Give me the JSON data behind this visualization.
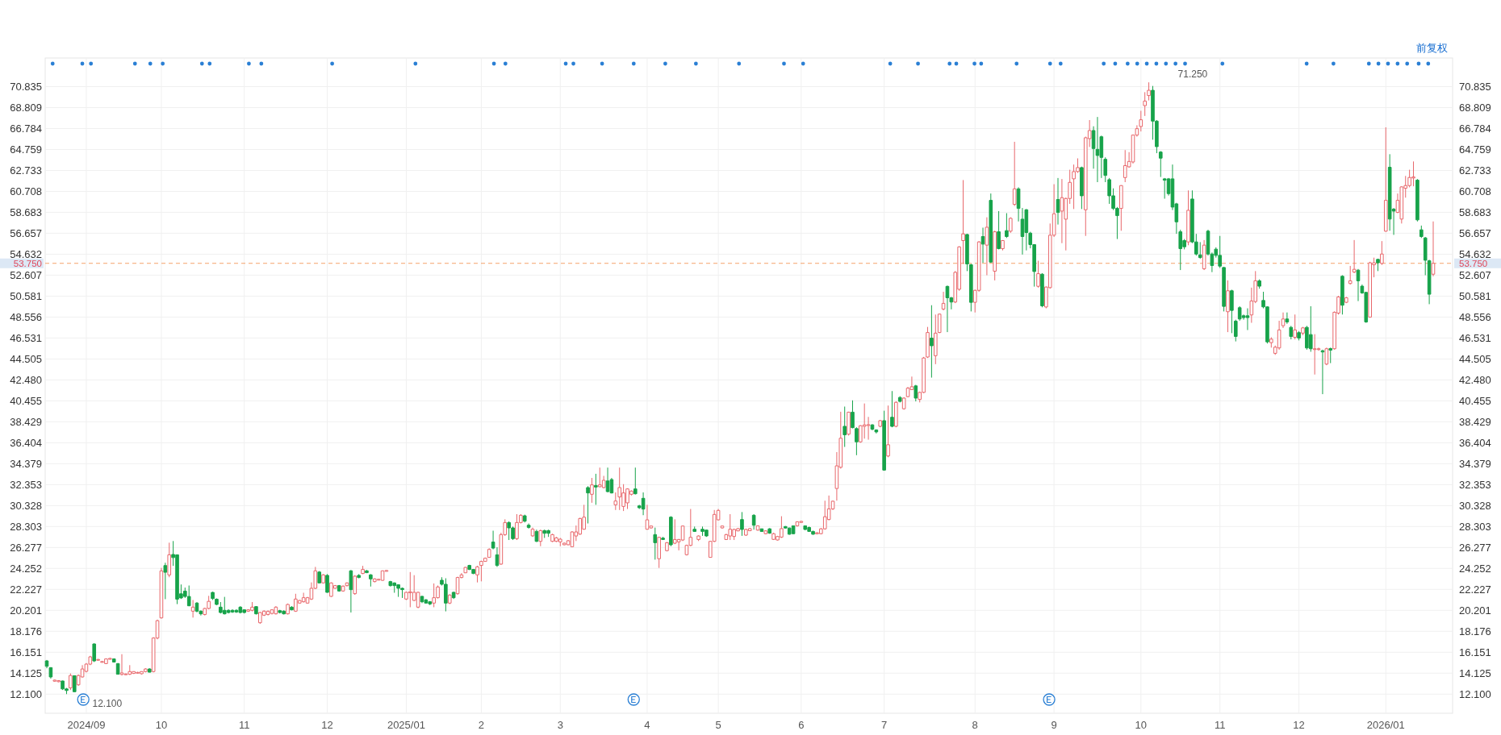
{
  "chart_data": {
    "type": "candlestick",
    "categories": [
      null,
      null,
      null,
      null,
      null,
      null,
      null,
      null,
      null,
      null,
      "2024/09",
      null,
      null,
      null,
      null,
      null,
      null,
      null,
      null,
      null,
      null,
      null,
      null,
      null,
      null,
      null,
      null,
      null,
      null,
      "10",
      null,
      null,
      null,
      null,
      null,
      null,
      null,
      null,
      null,
      null,
      null,
      null,
      null,
      null,
      null,
      null,
      null,
      null,
      null,
      null,
      "11",
      null,
      null,
      null,
      null,
      null,
      null,
      null,
      null,
      null,
      null,
      null,
      null,
      null,
      null,
      null,
      null,
      null,
      null,
      null,
      null,
      "12",
      null,
      null,
      null,
      null,
      null,
      null,
      null,
      null,
      null,
      null,
      null,
      null,
      null,
      null,
      null,
      null,
      null,
      null,
      null,
      "2025/01",
      null,
      null,
      null,
      null,
      null,
      null,
      null,
      null,
      null,
      null,
      null,
      null,
      null,
      null,
      null,
      null,
      null,
      null,
      "2",
      null,
      null,
      null,
      null,
      null,
      null,
      null,
      null,
      null,
      null,
      null,
      null,
      null,
      null,
      null,
      null,
      null,
      null,
      null,
      "3",
      null,
      null,
      null,
      null,
      null,
      null,
      null,
      null,
      null,
      null,
      null,
      null,
      null,
      null,
      null,
      null,
      null,
      null,
      null,
      null,
      null,
      "4",
      null,
      null,
      null,
      null,
      null,
      null,
      null,
      null,
      null,
      null,
      null,
      null,
      null,
      null,
      null,
      null,
      null,
      "5",
      null,
      null,
      null,
      null,
      null,
      null,
      null,
      null,
      null,
      null,
      null,
      null,
      null,
      null,
      null,
      null,
      null,
      null,
      null,
      null,
      "6",
      null,
      null,
      null,
      null,
      null,
      null,
      null,
      null,
      null,
      null,
      null,
      null,
      null,
      null,
      null,
      null,
      null,
      null,
      null,
      null,
      "7",
      null,
      null,
      null,
      null,
      null,
      null,
      null,
      null,
      null,
      null,
      null,
      null,
      null,
      null,
      null,
      null,
      null,
      null,
      null,
      null,
      null,
      null,
      "8",
      null,
      null,
      null,
      null,
      null,
      null,
      null,
      null,
      null,
      null,
      null,
      null,
      null,
      null,
      null,
      null,
      null,
      null,
      null,
      "9",
      null,
      null,
      null,
      null,
      null,
      null,
      null,
      null,
      null,
      null,
      null,
      null,
      null,
      null,
      null,
      null,
      null,
      null,
      null,
      null,
      null,
      "10",
      null,
      null,
      null,
      null,
      null,
      null,
      null,
      null,
      null,
      null,
      null,
      null,
      null,
      null,
      null,
      null,
      null,
      null,
      null,
      "11",
      null,
      null,
      null,
      null,
      null,
      null,
      null,
      null,
      null,
      null,
      null,
      null,
      null,
      null,
      null,
      null,
      null,
      null,
      null,
      "12",
      null,
      null,
      null,
      null,
      null,
      null,
      null,
      null,
      null,
      null,
      null,
      null,
      null,
      null,
      null,
      null,
      null,
      null,
      null,
      null,
      null,
      "2026/01",
      null,
      null,
      null,
      null,
      null,
      null,
      null,
      null,
      null,
      null,
      null,
      null
    ],
    "ohlc": [
      [
        15.31,
        15.4,
        14.6,
        14.79
      ],
      [
        14.66,
        14.7,
        13.6,
        13.76
      ],
      [
        13.35,
        13.5,
        13.3,
        13.45
      ],
      [
        13.3,
        13.45,
        13.25,
        13.4
      ],
      [
        13.37,
        13.4,
        12.5,
        12.6
      ],
      [
        12.6,
        12.7,
        12.1,
        12.45
      ],
      [
        12.7,
        14.1,
        12.5,
        13.9
      ],
      [
        13.88,
        13.9,
        12.3,
        12.33
      ],
      [
        13.0,
        14.0,
        12.9,
        13.9
      ],
      [
        13.76,
        14.9,
        13.7,
        14.53
      ],
      [
        14.3,
        15.1,
        14.2,
        15.0
      ],
      [
        15.0,
        15.8,
        14.9,
        15.7
      ],
      [
        16.95,
        17.0,
        15.2,
        15.31
      ],
      [
        15.4,
        15.5,
        15.35,
        15.45
      ],
      [
        15.2,
        15.3,
        15.15,
        15.25
      ],
      [
        15.05,
        15.55,
        15.0,
        15.5
      ],
      [
        15.5,
        15.6,
        15.45,
        15.55
      ],
      [
        15.5,
        15.55,
        15.15,
        15.2
      ],
      [
        15.05,
        15.1,
        14.0,
        14.02
      ],
      [
        14.0,
        15.96,
        13.9,
        14.15
      ],
      [
        14.0,
        14.1,
        13.95,
        14.05
      ],
      [
        14.02,
        14.9,
        13.95,
        14.28
      ],
      [
        14.1,
        14.3,
        14.05,
        14.28
      ],
      [
        14.15,
        14.25,
        14.1,
        14.2
      ],
      [
        14.07,
        14.3,
        14.0,
        14.28
      ],
      [
        14.28,
        14.6,
        14.2,
        14.53
      ],
      [
        14.53,
        14.6,
        14.2,
        14.22
      ],
      [
        14.28,
        17.6,
        14.2,
        17.52
      ],
      [
        17.52,
        19.3,
        17.4,
        19.2
      ],
      [
        19.47,
        24.3,
        19.4,
        24.01
      ],
      [
        24.53,
        24.8,
        21.28,
        23.88
      ],
      [
        23.62,
        26.74,
        23.4,
        25.57
      ],
      [
        25.6,
        26.9,
        24.5,
        25.3
      ],
      [
        25.57,
        25.6,
        20.8,
        21.28
      ],
      [
        21.8,
        22.7,
        21.3,
        21.4
      ],
      [
        22.06,
        22.4,
        21.4,
        21.54
      ],
      [
        21.54,
        22.6,
        20.6,
        20.64
      ],
      [
        20.12,
        21.2,
        19.5,
        20.51
      ],
      [
        20.9,
        21.0,
        20.0,
        20.12
      ],
      [
        20.12,
        20.2,
        19.7,
        19.86
      ],
      [
        19.8,
        20.45,
        19.7,
        20.38
      ],
      [
        20.38,
        21.6,
        20.3,
        21.07
      ],
      [
        21.93,
        22.0,
        21.2,
        21.34
      ],
      [
        21.28,
        21.35,
        20.7,
        20.77
      ],
      [
        20.51,
        21.0,
        19.9,
        19.99
      ],
      [
        20.2,
        21.5,
        19.8,
        19.86
      ],
      [
        20.2,
        20.3,
        19.9,
        19.99
      ],
      [
        20.2,
        20.3,
        19.95,
        20.04
      ],
      [
        20.2,
        20.3,
        19.95,
        20.04
      ],
      [
        20.51,
        20.6,
        19.9,
        19.99
      ],
      [
        20.25,
        20.3,
        19.9,
        19.99
      ],
      [
        20.12,
        20.3,
        20.05,
        20.25
      ],
      [
        20.2,
        21.0,
        20.1,
        20.51
      ],
      [
        20.56,
        20.6,
        19.8,
        19.86
      ],
      [
        19.0,
        20.05,
        18.9,
        19.99
      ],
      [
        19.73,
        20.2,
        19.65,
        20.12
      ],
      [
        19.8,
        20.2,
        19.7,
        20.1
      ],
      [
        19.9,
        20.3,
        19.8,
        20.25
      ],
      [
        19.86,
        20.6,
        19.8,
        20.51
      ],
      [
        20.17,
        20.25,
        19.9,
        19.99
      ],
      [
        20.12,
        20.2,
        19.8,
        19.86
      ],
      [
        19.86,
        20.85,
        19.8,
        20.77
      ],
      [
        20.51,
        20.6,
        20.2,
        20.25
      ],
      [
        20.12,
        21.8,
        20.05,
        21.29
      ],
      [
        20.9,
        21.2,
        20.85,
        21.15
      ],
      [
        21.03,
        21.9,
        20.95,
        21.42
      ],
      [
        20.9,
        21.5,
        20.85,
        21.42
      ],
      [
        21.29,
        22.9,
        21.2,
        22.33
      ],
      [
        22.33,
        24.4,
        22.25,
        24.02
      ],
      [
        23.9,
        24.0,
        22.8,
        22.85
      ],
      [
        22.85,
        23.7,
        22.8,
        23.63
      ],
      [
        23.58,
        23.7,
        21.9,
        21.94
      ],
      [
        21.55,
        22.9,
        21.5,
        22.85
      ],
      [
        22.33,
        22.65,
        22.3,
        22.59
      ],
      [
        22.59,
        22.65,
        22.0,
        22.07
      ],
      [
        22.07,
        22.6,
        22.0,
        22.54
      ],
      [
        22.59,
        22.9,
        22.5,
        22.85
      ],
      [
        24.02,
        24.1,
        19.99,
        22.2
      ],
      [
        21.81,
        23.6,
        21.7,
        23.5
      ],
      [
        23.58,
        23.7,
        23.3,
        23.37
      ],
      [
        23.76,
        24.5,
        23.7,
        24.15
      ],
      [
        24.02,
        24.1,
        23.8,
        23.84
      ],
      [
        23.63,
        23.7,
        22.5,
        23.24
      ],
      [
        22.98,
        23.3,
        22.9,
        23.24
      ],
      [
        23.17,
        23.25,
        23.1,
        23.2
      ],
      [
        23.1,
        24.05,
        23.05,
        24.02
      ],
      [
        24.0,
        24.1,
        23.95,
        24.05
      ],
      [
        22.98,
        23.05,
        22.5,
        22.59
      ],
      [
        22.85,
        22.9,
        21.9,
        22.59
      ],
      [
        22.67,
        22.7,
        21.5,
        22.33
      ],
      [
        22.33,
        22.4,
        21.4,
        22.2
      ],
      [
        21.29,
        22.0,
        21.2,
        21.94
      ],
      [
        21.9,
        23.9,
        20.5,
        22.0
      ],
      [
        21.16,
        23.6,
        21.1,
        21.94
      ],
      [
        20.51,
        22.0,
        20.4,
        21.94
      ],
      [
        21.55,
        21.6,
        20.9,
        21.03
      ],
      [
        21.21,
        21.3,
        20.85,
        20.9
      ],
      [
        21.03,
        21.1,
        20.7,
        20.82
      ],
      [
        20.9,
        22.8,
        20.5,
        21.42
      ],
      [
        21.42,
        22.6,
        21.35,
        22.46
      ],
      [
        23.11,
        23.4,
        22.6,
        22.72
      ],
      [
        22.72,
        23.3,
        20.1,
        20.9
      ],
      [
        20.9,
        21.75,
        20.8,
        21.68
      ],
      [
        21.94,
        22.0,
        21.3,
        21.42
      ],
      [
        21.81,
        23.45,
        21.7,
        23.37
      ],
      [
        23.37,
        23.8,
        23.3,
        23.63
      ],
      [
        23.83,
        24.4,
        23.8,
        24.35
      ],
      [
        24.54,
        24.6,
        24.1,
        24.15
      ],
      [
        24.15,
        24.2,
        23.7,
        23.76
      ],
      [
        23.63,
        24.5,
        22.9,
        24.41
      ],
      [
        24.54,
        25.0,
        23.0,
        24.93
      ],
      [
        24.93,
        25.3,
        24.9,
        25.24
      ],
      [
        25.32,
        26.2,
        25.3,
        26.09
      ],
      [
        26.8,
        27.9,
        26.1,
        26.22
      ],
      [
        25.57,
        26.3,
        24.4,
        24.54
      ],
      [
        24.67,
        27.7,
        24.6,
        27.52
      ],
      [
        27.52,
        29.0,
        27.4,
        28.69
      ],
      [
        28.69,
        28.8,
        27.0,
        28.17
      ],
      [
        28.17,
        28.3,
        27.0,
        27.13
      ],
      [
        27.13,
        29.5,
        27.0,
        28.69
      ],
      [
        28.69,
        29.5,
        28.6,
        29.39
      ],
      [
        29.34,
        29.45,
        28.7,
        28.82
      ],
      [
        28.43,
        28.6,
        28.1,
        28.22
      ],
      [
        27.4,
        28.2,
        27.3,
        28.04
      ],
      [
        27.83,
        28.0,
        26.8,
        26.87
      ],
      [
        26.87,
        28.0,
        26.4,
        27.91
      ],
      [
        27.91,
        28.0,
        27.2,
        27.65
      ],
      [
        27.91,
        28.0,
        27.3,
        27.65
      ],
      [
        26.87,
        27.6,
        26.8,
        27.52
      ],
      [
        26.87,
        27.3,
        26.8,
        27.21
      ],
      [
        26.82,
        27.2,
        26.4,
        27.08
      ],
      [
        26.54,
        26.75,
        26.5,
        26.69
      ],
      [
        26.54,
        27.0,
        26.5,
        26.93
      ],
      [
        26.35,
        27.85,
        26.3,
        27.78
      ],
      [
        27.39,
        28.4,
        26.9,
        27.78
      ],
      [
        27.57,
        29.15,
        27.5,
        29.08
      ],
      [
        28.04,
        30.4,
        28.0,
        29.21
      ],
      [
        32.07,
        32.2,
        28.6,
        31.55
      ],
      [
        31.42,
        33.0,
        30.6,
        32.33
      ],
      [
        32.27,
        33.4,
        30.4,
        32.12
      ],
      [
        32.15,
        34.0,
        32.1,
        32.33
      ],
      [
        32.07,
        33.2,
        32.0,
        32.77
      ],
      [
        32.71,
        34.0,
        31.6,
        31.68
      ],
      [
        32.84,
        33.0,
        31.5,
        31.55
      ],
      [
        30.4,
        31.6,
        29.9,
        30.77
      ],
      [
        31.16,
        34.0,
        29.9,
        32.07
      ],
      [
        30.25,
        32.4,
        29.8,
        31.55
      ],
      [
        30.59,
        32.0,
        30.0,
        31.94
      ],
      [
        31.42,
        31.8,
        31.3,
        31.73
      ],
      [
        31.94,
        34.0,
        31.4,
        31.47
      ],
      [
        30.3,
        30.4,
        30.0,
        30.12
      ],
      [
        31.03,
        31.6,
        29.4,
        29.99
      ],
      [
        28.04,
        30.4,
        28.0,
        28.95
      ],
      [
        28.17,
        28.4,
        28.1,
        28.35
      ],
      [
        27.52,
        28.2,
        25.1,
        26.74
      ],
      [
        25.19,
        27.3,
        24.3,
        27.26
      ],
      [
        27.18,
        27.3,
        27.0,
        27.05
      ],
      [
        25.97,
        26.8,
        25.9,
        26.74
      ],
      [
        29.21,
        29.3,
        26.4,
        26.54
      ],
      [
        26.69,
        29.0,
        26.6,
        27.05
      ],
      [
        26.82,
        27.1,
        26.0,
        27.05
      ],
      [
        27.0,
        28.4,
        26.9,
        28.35
      ],
      [
        25.58,
        26.55,
        25.5,
        26.48
      ],
      [
        26.48,
        30.0,
        26.4,
        27.26
      ],
      [
        28.04,
        28.3,
        27.8,
        27.83
      ],
      [
        27.05,
        27.45,
        26.9,
        27.39
      ],
      [
        28.04,
        28.3,
        27.4,
        27.83
      ],
      [
        27.96,
        28.0,
        27.3,
        27.39
      ],
      [
        25.32,
        26.9,
        25.3,
        26.87
      ],
      [
        26.87,
        29.9,
        26.8,
        29.47
      ],
      [
        28.95,
        30.0,
        28.9,
        29.86
      ],
      [
        28.17,
        28.4,
        28.1,
        28.35
      ],
      [
        27.05,
        27.6,
        27.0,
        27.52
      ],
      [
        27.39,
        29.5,
        27.0,
        28.04
      ],
      [
        27.34,
        28.1,
        27.0,
        28.02
      ],
      [
        27.88,
        28.15,
        27.85,
        28.1
      ],
      [
        28.98,
        29.7,
        27.4,
        28.02
      ],
      [
        27.47,
        28.1,
        27.4,
        28.02
      ],
      [
        27.9,
        28.15,
        27.85,
        28.1
      ],
      [
        29.39,
        29.5,
        28.0,
        28.43
      ],
      [
        27.96,
        28.4,
        27.9,
        28.37
      ],
      [
        28.08,
        28.1,
        27.8,
        27.83
      ],
      [
        27.61,
        27.95,
        27.55,
        27.88
      ],
      [
        28.08,
        28.15,
        27.6,
        27.66
      ],
      [
        27.06,
        27.7,
        27.0,
        27.61
      ],
      [
        27.0,
        27.4,
        26.95,
        27.34
      ],
      [
        27.28,
        29.3,
        27.2,
        28.1
      ],
      [
        28.3,
        28.35,
        28.1,
        28.16
      ],
      [
        28.16,
        28.2,
        27.5,
        27.56
      ],
      [
        28.37,
        28.4,
        27.55,
        27.61
      ],
      [
        28.37,
        28.8,
        28.3,
        28.76
      ],
      [
        28.7,
        28.85,
        28.65,
        28.8
      ],
      [
        28.37,
        28.4,
        27.95,
        28.02
      ],
      [
        28.21,
        28.3,
        27.8,
        27.83
      ],
      [
        27.83,
        27.9,
        27.5,
        27.56
      ],
      [
        27.6,
        27.75,
        27.55,
        27.7
      ],
      [
        27.61,
        28.15,
        27.55,
        28.08
      ],
      [
        28.08,
        30.8,
        28.0,
        29.25
      ],
      [
        28.98,
        31.3,
        28.9,
        30.01
      ],
      [
        30.01,
        30.8,
        29.9,
        30.75
      ],
      [
        31.98,
        35.5,
        30.8,
        34.17
      ],
      [
        34.03,
        39.4,
        33.9,
        36.84
      ],
      [
        37.99,
        39.9,
        36.0,
        37.17
      ],
      [
        37.23,
        39.4,
        37.1,
        39.36
      ],
      [
        39.36,
        40.5,
        37.8,
        37.86
      ],
      [
        37.77,
        37.9,
        35.2,
        36.49
      ],
      [
        36.49,
        38.1,
        36.4,
        38.05
      ],
      [
        37.99,
        40.2,
        36.8,
        38.13
      ],
      [
        38.1,
        38.9,
        36.7,
        38.15
      ],
      [
        38.13,
        38.2,
        37.6,
        37.72
      ],
      [
        37.64,
        37.7,
        37.3,
        37.45
      ],
      [
        37.99,
        38.6,
        37.9,
        38.54
      ],
      [
        38.54,
        39.5,
        33.7,
        33.76
      ],
      [
        35.12,
        40.0,
        35.0,
        36.21
      ],
      [
        38.87,
        41.4,
        37.9,
        37.99
      ],
      [
        37.99,
        40.4,
        37.9,
        40.31
      ],
      [
        40.78,
        40.9,
        40.3,
        40.4
      ],
      [
        39.69,
        40.8,
        39.6,
        40.72
      ],
      [
        40.86,
        41.8,
        40.8,
        41.68
      ],
      [
        41.54,
        42.8,
        41.5,
        41.82
      ],
      [
        41.9,
        42.0,
        40.4,
        40.72
      ],
      [
        40.59,
        41.35,
        40.3,
        41.27
      ],
      [
        41.27,
        44.7,
        41.2,
        44.6
      ],
      [
        44.69,
        47.6,
        44.6,
        47.06
      ],
      [
        46.52,
        49.7,
        42.7,
        45.78
      ],
      [
        44.82,
        48.8,
        44.0,
        47.0
      ],
      [
        47.06,
        48.9,
        47.0,
        48.84
      ],
      [
        49.33,
        51.0,
        49.2,
        49.88
      ],
      [
        51.52,
        51.6,
        47.1,
        50.42
      ],
      [
        50.42,
        50.5,
        49.3,
        50.01
      ],
      [
        50.01,
        53.0,
        49.9,
        52.88
      ],
      [
        51.24,
        55.4,
        51.1,
        55.34
      ],
      [
        55.95,
        61.8,
        53.7,
        56.6
      ],
      [
        56.54,
        56.6,
        53.0,
        53.69
      ],
      [
        53.61,
        53.7,
        49.1,
        49.98
      ],
      [
        49.98,
        51.2,
        49.0,
        51.14
      ],
      [
        51.14,
        55.9,
        51.0,
        55.82
      ],
      [
        56.34,
        57.2,
        53.8,
        55.61
      ],
      [
        55.51,
        58.2,
        52.6,
        57.24
      ],
      [
        59.84,
        60.5,
        53.8,
        53.87
      ],
      [
        52.99,
        56.9,
        52.1,
        56.8
      ],
      [
        56.8,
        58.8,
        55.1,
        55.17
      ],
      [
        55.17,
        56.0,
        55.0,
        55.95
      ],
      [
        56.91,
        58.6,
        56.2,
        56.34
      ],
      [
        56.86,
        58.2,
        56.7,
        58.1
      ],
      [
        59.45,
        65.5,
        59.3,
        60.95
      ],
      [
        60.95,
        61.1,
        57.8,
        59.06
      ],
      [
        58.02,
        59.1,
        54.6,
        56.34
      ],
      [
        58.93,
        59.0,
        55.0,
        56.73
      ],
      [
        56.67,
        56.8,
        55.2,
        55.56
      ],
      [
        55.56,
        55.6,
        51.5,
        52.96
      ],
      [
        51.53,
        54.0,
        51.4,
        52.75
      ],
      [
        52.7,
        52.8,
        49.5,
        49.64
      ],
      [
        49.53,
        51.5,
        49.4,
        51.46
      ],
      [
        51.4,
        57.6,
        51.3,
        56.47
      ],
      [
        56.47,
        61.4,
        56.3,
        58.54
      ],
      [
        59.92,
        62.0,
        57.5,
        58.67
      ],
      [
        58.8,
        61.9,
        55.7,
        60.1
      ],
      [
        58.02,
        60.1,
        55.0,
        60.02
      ],
      [
        60.02,
        62.8,
        59.5,
        61.58
      ],
      [
        61.92,
        63.3,
        59.0,
        62.62
      ],
      [
        62.62,
        63.9,
        62.5,
        63.01
      ],
      [
        63.01,
        63.1,
        59.0,
        60.28
      ],
      [
        58.93,
        66.0,
        56.4,
        65.89
      ],
      [
        65.81,
        67.6,
        65.0,
        66.59
      ],
      [
        66.59,
        67.0,
        62.9,
        64.85
      ],
      [
        64.77,
        67.9,
        61.6,
        64.18
      ],
      [
        65.99,
        66.1,
        62.0,
        63.99
      ],
      [
        63.81,
        64.0,
        61.6,
        62.25
      ],
      [
        61.84,
        62.0,
        59.5,
        60.28
      ],
      [
        60.28,
        61.0,
        58.9,
        59.06
      ],
      [
        59.06,
        59.2,
        56.1,
        58.36
      ],
      [
        59.06,
        61.3,
        56.9,
        61.27
      ],
      [
        62.04,
        64.7,
        61.6,
        63.2
      ],
      [
        63.08,
        64.5,
        63.0,
        63.6
      ],
      [
        63.55,
        66.2,
        63.4,
        66.15
      ],
      [
        66.15,
        67.1,
        66.0,
        66.77
      ],
      [
        66.98,
        68.5,
        66.5,
        67.63
      ],
      [
        69.0,
        70.3,
        68.0,
        69.44
      ],
      [
        69.97,
        71.25,
        69.5,
        70.48
      ],
      [
        70.48,
        70.9,
        65.7,
        67.5
      ],
      [
        67.5,
        67.6,
        64.4,
        65.03
      ],
      [
        64.51,
        64.6,
        62.1,
        63.92
      ],
      [
        61.92,
        62.0,
        60.0,
        61.79
      ],
      [
        61.92,
        62.0,
        60.3,
        60.49
      ],
      [
        61.92,
        63.3,
        58.9,
        59.19
      ],
      [
        59.5,
        59.6,
        56.6,
        57.76
      ],
      [
        56.8,
        57.0,
        53.1,
        55.17
      ],
      [
        55.95,
        56.1,
        55.1,
        55.35
      ],
      [
        55.82,
        60.8,
        55.5,
        58.88
      ],
      [
        59.97,
        60.8,
        55.7,
        55.82
      ],
      [
        55.82,
        56.6,
        54.5,
        54.65
      ],
      [
        54.57,
        55.8,
        54.2,
        54.31
      ],
      [
        53.22,
        56.0,
        53.1,
        55.51
      ],
      [
        56.86,
        57.0,
        54.5,
        54.65
      ],
      [
        54.65,
        54.8,
        52.9,
        53.54
      ],
      [
        55.12,
        55.3,
        54.3,
        54.52
      ],
      [
        54.52,
        56.4,
        53.3,
        53.48
      ],
      [
        53.35,
        53.4,
        49.1,
        49.59
      ],
      [
        49.07,
        52.1,
        47.1,
        51.1
      ],
      [
        51.1,
        51.2,
        47.0,
        49.2
      ],
      [
        48.16,
        48.3,
        46.2,
        46.68
      ],
      [
        49.46,
        49.6,
        48.2,
        48.37
      ],
      [
        48.68,
        48.8,
        48.3,
        48.5
      ],
      [
        48.68,
        49.4,
        47.3,
        48.5
      ],
      [
        48.76,
        51.4,
        48.0,
        50.11
      ],
      [
        50.06,
        53.0,
        49.9,
        52.06
      ],
      [
        52.06,
        52.2,
        51.3,
        51.54
      ],
      [
        50.16,
        51.0,
        49.4,
        49.54
      ],
      [
        49.54,
        49.6,
        46.0,
        46.16
      ],
      [
        46.08,
        46.6,
        45.6,
        46.42
      ],
      [
        45.05,
        45.8,
        44.9,
        45.64
      ],
      [
        45.57,
        48.2,
        45.4,
        47.31
      ],
      [
        47.72,
        49.0,
        47.5,
        48.37
      ],
      [
        48.37,
        49.0,
        47.9,
        48.08
      ],
      [
        47.56,
        47.7,
        46.4,
        46.68
      ],
      [
        46.6,
        48.8,
        46.4,
        47.31
      ],
      [
        47.05,
        47.2,
        46.3,
        46.53
      ],
      [
        47.0,
        47.6,
        46.8,
        47.51
      ],
      [
        47.56,
        47.7,
        45.4,
        45.57
      ],
      [
        46.86,
        49.6,
        45.2,
        45.49
      ],
      [
        45.44,
        46.9,
        43.0,
        45.49
      ],
      [
        45.45,
        45.6,
        45.3,
        45.49
      ],
      [
        45.3,
        45.4,
        41.1,
        45.18
      ],
      [
        44.01,
        45.6,
        43.9,
        45.49
      ],
      [
        45.51,
        45.6,
        44.1,
        45.36
      ],
      [
        45.49,
        49.1,
        45.4,
        49.02
      ],
      [
        48.94,
        50.6,
        48.8,
        50.5
      ],
      [
        52.5,
        52.6,
        48.8,
        49.7
      ],
      [
        49.98,
        50.5,
        49.9,
        50.42
      ],
      [
        51.8,
        53.5,
        51.7,
        52.06
      ],
      [
        52.91,
        56.0,
        52.8,
        53.17
      ],
      [
        53.09,
        53.2,
        50.1,
        52.06
      ],
      [
        51.54,
        51.7,
        50.8,
        50.89
      ],
      [
        50.94,
        51.0,
        48.0,
        48.08
      ],
      [
        48.55,
        53.9,
        48.5,
        53.8
      ],
      [
        53.61,
        54.3,
        52.4,
        53.8
      ],
      [
        54.13,
        54.2,
        53.0,
        53.8
      ],
      [
        53.74,
        55.9,
        53.6,
        54.65
      ],
      [
        56.86,
        66.9,
        56.8,
        59.84
      ],
      [
        63.04,
        64.3,
        56.9,
        58.03
      ],
      [
        58.99,
        59.1,
        56.5,
        58.8
      ],
      [
        58.68,
        60.5,
        58.6,
        59.84
      ],
      [
        58.03,
        61.2,
        57.6,
        61.14
      ],
      [
        61.01,
        62.2,
        60.1,
        61.27
      ],
      [
        61.27,
        62.8,
        61.1,
        62.05
      ],
      [
        62.0,
        63.6,
        61.2,
        62.1
      ],
      [
        61.79,
        61.9,
        57.8,
        57.95
      ],
      [
        56.99,
        57.4,
        56.2,
        56.34
      ],
      [
        56.21,
        56.3,
        52.6,
        54.05
      ],
      [
        54.0,
        54.1,
        49.8,
        50.76
      ],
      [
        52.7,
        57.8,
        52.5,
        53.75
      ]
    ],
    "colors": [
      "#17a34a",
      "#17a34a",
      "#e8676b",
      "#e8676b",
      "#17a34a",
      "#17a34a",
      "#e8676b",
      "#17a34a",
      "#e8676b",
      "#e8676b",
      "#e8676b",
      "#e8676b",
      "#17a34a",
      "#e8676b",
      "#e8676b",
      "#e8676b",
      "#e8676b",
      "#17a34a",
      "#17a34a",
      "#e8676b",
      "#e8676b",
      "#e8676b",
      "#e8676b",
      "#e8676b",
      "#e8676b",
      "#e8676b",
      "#17a34a",
      "#e8676b",
      "#e8676b",
      "#e8676b",
      "#17a34a",
      "#e8676b",
      "#17a34a",
      "#17a34a",
      "#17a34a",
      "#17a34a",
      "#17a34a",
      "#e8676b",
      "#17a34a",
      "#17a34a",
      "#e8676b",
      "#e8676b",
      "#17a34a",
      "#17a34a",
      "#17a34a",
      "#17a34a",
      "#17a34a",
      "#17a34a",
      "#17a34a",
      "#17a34a",
      "#17a34a",
      "#e8676b",
      "#e8676b",
      "#17a34a",
      "#e8676b",
      "#e8676b",
      "#e8676b",
      "#e8676b",
      "#e8676b",
      "#17a34a",
      "#17a34a",
      "#e8676b",
      "#17a34a",
      "#e8676b",
      "#e8676b",
      "#e8676b",
      "#e8676b",
      "#e8676b",
      "#e8676b",
      "#17a34a",
      "#e8676b",
      "#17a34a",
      "#e8676b",
      "#e8676b",
      "#17a34a",
      "#e8676b",
      "#e8676b",
      "#17a34a",
      "#e8676b",
      "#17a34a",
      "#e8676b",
      "#17a34a",
      "#17a34a",
      "#e8676b",
      "#e8676b",
      "#e8676b",
      "#e8676b",
      "#17a34a",
      "#17a34a",
      "#17a34a",
      "#17a34a",
      "#e8676b",
      "#e8676b",
      "#e8676b",
      "#e8676b",
      "#17a34a",
      "#17a34a",
      "#17a34a",
      "#e8676b",
      "#e8676b",
      "#17a34a",
      "#17a34a",
      "#e8676b",
      "#17a34a",
      "#e8676b",
      "#e8676b",
      "#e8676b",
      "#17a34a",
      "#17a34a",
      "#e8676b",
      "#e8676b",
      "#e8676b",
      "#e8676b",
      "#17a34a",
      "#17a34a",
      "#e8676b",
      "#e8676b",
      "#17a34a",
      "#17a34a",
      "#e8676b",
      "#e8676b",
      "#17a34a",
      "#17a34a",
      "#e8676b",
      "#17a34a",
      "#e8676b",
      "#17a34a",
      "#17a34a",
      "#e8676b",
      "#e8676b",
      "#e8676b",
      "#e8676b",
      "#e8676b",
      "#e8676b",
      "#e8676b",
      "#e8676b",
      "#e8676b",
      "#17a34a",
      "#e8676b",
      "#17a34a",
      "#e8676b",
      "#e8676b",
      "#17a34a",
      "#17a34a",
      "#e8676b",
      "#e8676b",
      "#e8676b",
      "#e8676b",
      "#e8676b",
      "#17a34a",
      "#17a34a",
      "#17a34a",
      "#e8676b",
      "#e8676b",
      "#17a34a",
      "#e8676b",
      "#17a34a",
      "#e8676b",
      "#17a34a",
      "#e8676b",
      "#e8676b",
      "#e8676b",
      "#e8676b",
      "#e8676b",
      "#17a34a",
      "#e8676b",
      "#17a34a",
      "#17a34a",
      "#e8676b",
      "#e8676b",
      "#e8676b",
      "#e8676b",
      "#e8676b",
      "#e8676b",
      "#e8676b",
      "#e8676b",
      "#17a34a",
      "#e8676b",
      "#e8676b",
      "#17a34a",
      "#e8676b",
      "#17a34a",
      "#e8676b",
      "#17a34a",
      "#e8676b",
      "#e8676b",
      "#e8676b",
      "#17a34a",
      "#17a34a",
      "#17a34a",
      "#e8676b",
      "#e8676b",
      "#17a34a",
      "#17a34a",
      "#17a34a",
      "#e8676b",
      "#e8676b",
      "#e8676b",
      "#e8676b",
      "#e8676b",
      "#e8676b",
      "#e8676b",
      "#17a34a",
      "#e8676b",
      "#17a34a",
      "#17a34a",
      "#e8676b",
      "#e8676b",
      "#e8676b",
      "#17a34a",
      "#17a34a",
      "#e8676b",
      "#17a34a",
      "#e8676b",
      "#17a34a",
      "#e8676b",
      "#17a34a",
      "#e8676b",
      "#e8676b",
      "#e8676b",
      "#17a34a",
      "#e8676b",
      "#e8676b",
      "#e8676b",
      "#17a34a",
      "#e8676b",
      "#e8676b",
      "#e8676b",
      "#17a34a",
      "#17a34a",
      "#e8676b",
      "#e8676b",
      "#e8676b",
      "#17a34a",
      "#17a34a",
      "#e8676b",
      "#e8676b",
      "#17a34a",
      "#e8676b",
      "#17a34a",
      "#e8676b",
      "#17a34a",
      "#e8676b",
      "#17a34a",
      "#e8676b",
      "#e8676b",
      "#17a34a",
      "#17a34a",
      "#17a34a",
      "#17a34a",
      "#17a34a",
      "#e8676b",
      "#17a34a",
      "#e8676b",
      "#e8676b",
      "#e8676b",
      "#17a34a",
      "#e8676b",
      "#e8676b",
      "#e8676b",
      "#e8676b",
      "#e8676b",
      "#17a34a",
      "#e8676b",
      "#e8676b",
      "#17a34a",
      "#17a34a",
      "#17a34a",
      "#17a34a",
      "#17a34a",
      "#17a34a",
      "#17a34a",
      "#e8676b",
      "#e8676b",
      "#e8676b",
      "#e8676b",
      "#e8676b",
      "#e8676b",
      "#e8676b",
      "#e8676b",
      "#17a34a",
      "#17a34a",
      "#17a34a",
      "#17a34a",
      "#17a34a",
      "#17a34a",
      "#17a34a",
      "#17a34a",
      "#17a34a",
      "#e8676b",
      "#17a34a",
      "#17a34a",
      "#17a34a",
      "#e8676b",
      "#17a34a",
      "#17a34a",
      "#17a34a",
      "#17a34a",
      "#17a34a",
      "#e8676b",
      "#17a34a",
      "#17a34a",
      "#17a34a",
      "#17a34a",
      "#17a34a",
      "#e8676b",
      "#e8676b",
      "#17a34a",
      "#17a34a",
      "#17a34a",
      "#e8676b",
      "#e8676b",
      "#e8676b",
      "#e8676b",
      "#17a34a",
      "#17a34a",
      "#e8676b",
      "#17a34a",
      "#e8676b",
      "#17a34a",
      "#17a34a",
      "#e8676b",
      "#e8676b",
      "#17a34a",
      "#e8676b",
      "#17a34a",
      "#e8676b",
      "#e8676b",
      "#17a34a",
      "#e8676b",
      "#e8676b",
      "#e8676b",
      "#17a34a",
      "#17a34a",
      "#17a34a",
      "#e8676b",
      "#e8676b",
      "#17a34a",
      "#e8676b",
      "#e8676b",
      "#17a34a",
      "#17a34a",
      "#e8676b",
      "#e8676b",
      "#e8676b",
      "#e8676b",
      "#e8676b",
      "#17a34a",
      "#17a34a",
      "#17a34a",
      "#17a34a",
      "#e8676b"
    ],
    "ylim": [
      10.25,
      73.6
    ],
    "yticks": [
      {
        "value": 12.1,
        "label": "12.100"
      },
      14.125,
      16.151,
      18.176,
      20.201,
      22.227,
      24.252,
      26.277,
      28.303,
      30.328,
      32.353,
      34.379,
      36.404,
      38.429,
      40.455,
      {
        "value": 42.48,
        "label": "42.480"
      },
      44.505,
      46.531,
      48.556,
      50.581,
      52.607,
      54.632,
      56.657,
      58.683,
      60.708,
      62.733,
      64.759,
      66.784,
      68.809,
      70.835
    ],
    "y2lim": [
      10.25,
      73.6
    ],
    "y2ticks": [
      {
        "value": 12.1,
        "label": "12.100"
      },
      14.125,
      16.151,
      18.176,
      20.201,
      22.227,
      24.252,
      26.277,
      28.303,
      30.328,
      32.353,
      34.379,
      36.404,
      38.429,
      40.455,
      {
        "value": 42.48,
        "label": "42.480"
      },
      44.505,
      46.531,
      48.556,
      50.581,
      52.607,
      54.632,
      56.657,
      58.683,
      60.708,
      62.733,
      64.759,
      66.784,
      68.809,
      70.835
    ],
    "grid": true,
    "ref_lines": [
      {
        "axis": "y",
        "value": 53.75,
        "label": "53.750",
        "color": "#f5a36c",
        "line_style": "dashed"
      }
    ],
    "annotations": [
      "前复权",
      "71.250",
      "12.100"
    ]
  }
}
